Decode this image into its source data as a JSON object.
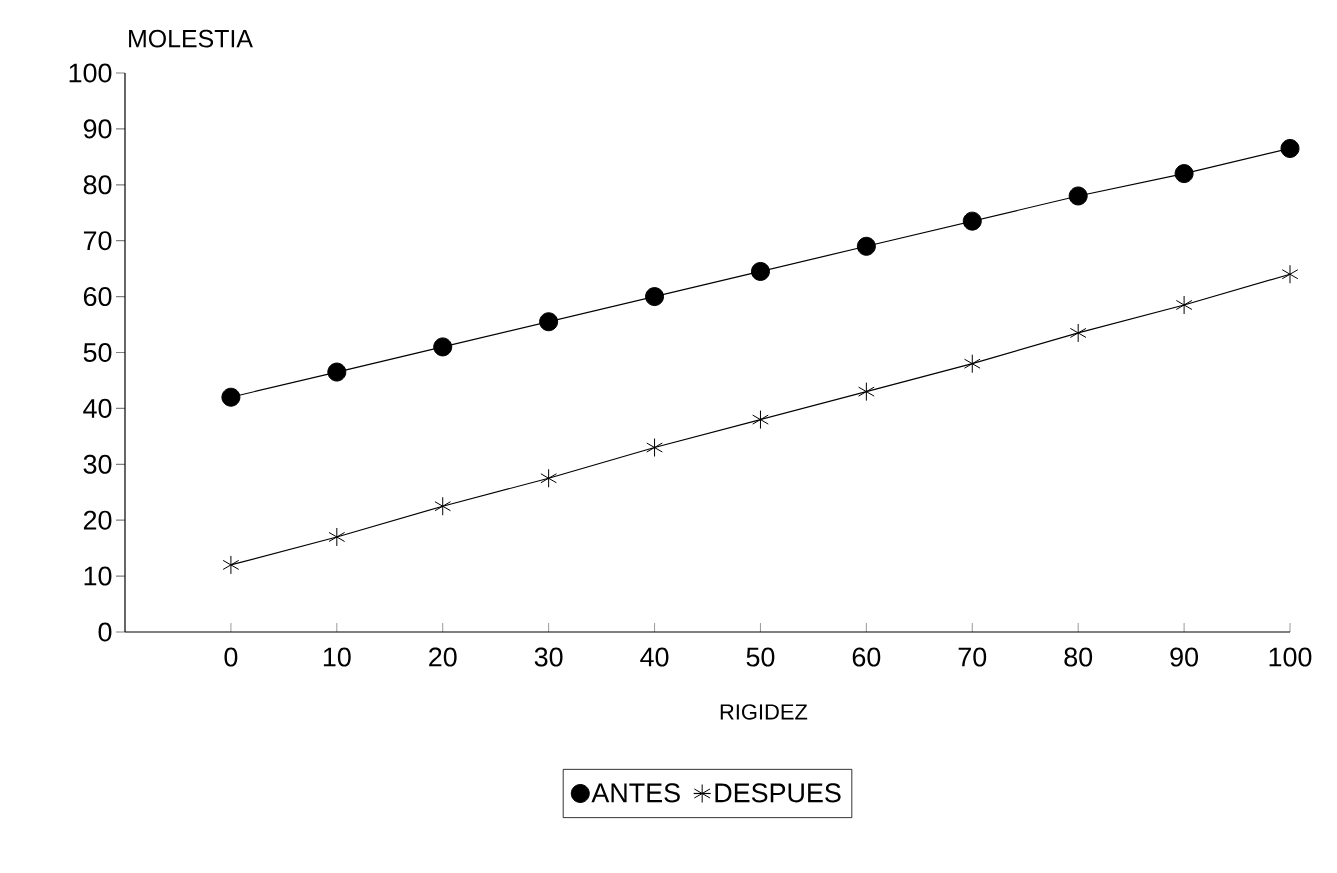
{
  "chart_data": {
    "type": "line",
    "xlabel": "RIGIDEZ",
    "ylabel": "MOLESTIA",
    "x": [
      0,
      10,
      20,
      30,
      40,
      50,
      60,
      70,
      80,
      90,
      100
    ],
    "series": [
      {
        "name": "ANTES",
        "color": "#000000",
        "marker": "circle",
        "values": [
          42,
          46.5,
          51,
          55.5,
          60,
          64.5,
          69,
          73.5,
          78,
          82,
          86.5
        ]
      },
      {
        "name": "DESPUES",
        "color": "#000000",
        "marker": "cross",
        "values": [
          12,
          17,
          22.5,
          27.5,
          33,
          38,
          43,
          48,
          53.5,
          58.5,
          64
        ]
      }
    ],
    "xlim": [
      -10,
      100
    ],
    "xticks": [
      0,
      10,
      20,
      30,
      40,
      50,
      60,
      70,
      80,
      90,
      100
    ],
    "ylim": [
      0,
      100
    ],
    "yticks": [
      0,
      10,
      20,
      30,
      40,
      50,
      60,
      70,
      80,
      90,
      100
    ],
    "grid": false,
    "legend": "bottom",
    "line_style": "solid"
  }
}
